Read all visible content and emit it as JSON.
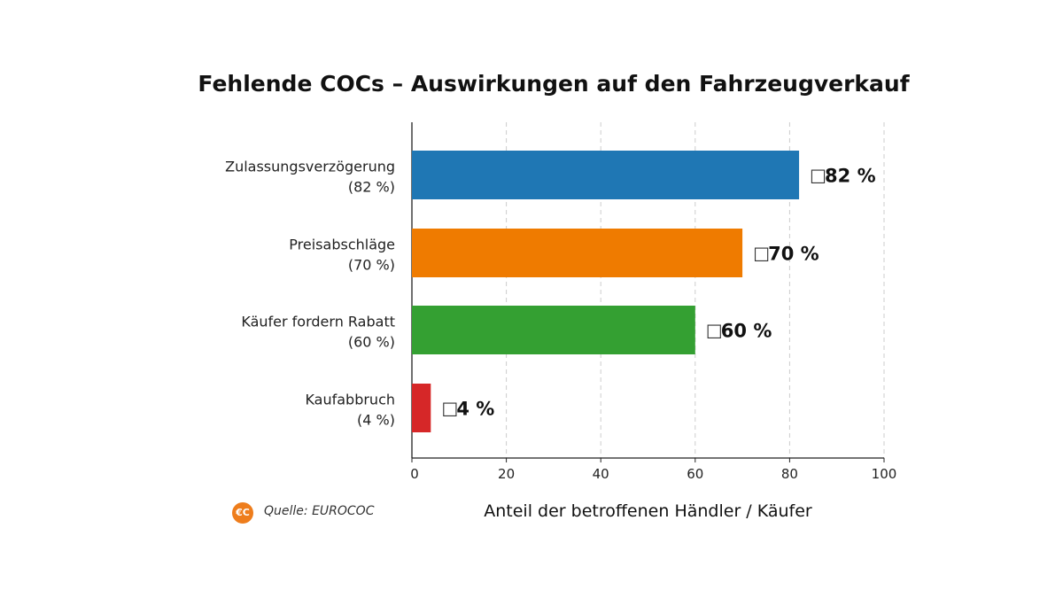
{
  "chart_data": {
    "type": "bar",
    "orientation": "horizontal",
    "title": "Fehlende COCs – Auswirkungen auf den Fahrzeugverkauf",
    "xlabel": "Anteil der betroffenen Händler / Käufer",
    "ylabel": "",
    "xlim": [
      0,
      100
    ],
    "xticks": [
      0,
      20,
      40,
      60,
      80,
      100
    ],
    "grid": "vertical dashed",
    "categories": [
      {
        "name": "Zulassungsverzögerung",
        "sub": "(82 %)"
      },
      {
        "name": "Preisabschläge",
        "sub": "(70 %)"
      },
      {
        "name": "Käufer fordern Rabatt",
        "sub": "(60 %)"
      },
      {
        "name": "Kaufabbruch",
        "sub": "(4 %)"
      }
    ],
    "values": [
      82,
      70,
      60,
      4
    ],
    "data_labels": [
      "82 %",
      "70 %",
      "60 %",
      "4 %"
    ],
    "colors": [
      "#1f77b4",
      "#ef7b00",
      "#34a032",
      "#d62728"
    ],
    "source": "Quelle: EUROCOC",
    "logo_text": "€C"
  }
}
